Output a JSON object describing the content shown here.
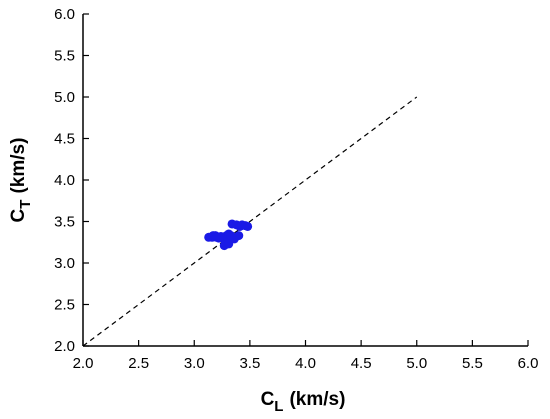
{
  "chart_data": {
    "type": "scatter",
    "xlabel": "C",
    "xlabel_sub": "L",
    "xlabel_unit": "(km/s)",
    "ylabel": "C",
    "ylabel_sub": "T",
    "ylabel_unit": "(km/s)",
    "xlim": [
      2.0,
      6.0
    ],
    "ylim": [
      2.0,
      6.0
    ],
    "xticks": [
      "2.0",
      "2.5",
      "3.0",
      "3.5",
      "4.0",
      "4.5",
      "5.0",
      "5.5",
      "6.0"
    ],
    "yticks": [
      "2.0",
      "2.5",
      "3.0",
      "3.5",
      "4.0",
      "4.5",
      "5.0",
      "5.5",
      "6.0"
    ],
    "grid": false,
    "reference_line": {
      "x": [
        2.0,
        5.0
      ],
      "y": [
        2.0,
        5.0
      ],
      "style": "dashed",
      "color": "#000000"
    },
    "series": [
      {
        "color": "#1a1ae6",
        "points": [
          [
            3.13,
            3.31
          ],
          [
            3.16,
            3.31
          ],
          [
            3.19,
            3.33
          ],
          [
            3.2,
            3.31
          ],
          [
            3.22,
            3.3
          ],
          [
            3.24,
            3.32
          ],
          [
            3.26,
            3.31
          ],
          [
            3.27,
            3.21
          ],
          [
            3.28,
            3.26
          ],
          [
            3.29,
            3.33
          ],
          [
            3.3,
            3.31
          ],
          [
            3.31,
            3.23
          ],
          [
            3.31,
            3.35
          ],
          [
            3.33,
            3.33
          ],
          [
            3.34,
            3.47
          ],
          [
            3.36,
            3.29
          ],
          [
            3.38,
            3.46
          ],
          [
            3.4,
            3.33
          ],
          [
            3.41,
            3.44
          ],
          [
            3.43,
            3.46
          ],
          [
            3.46,
            3.45
          ],
          [
            3.48,
            3.44
          ],
          [
            3.23,
            3.31
          ],
          [
            3.17,
            3.33
          ]
        ]
      }
    ]
  }
}
